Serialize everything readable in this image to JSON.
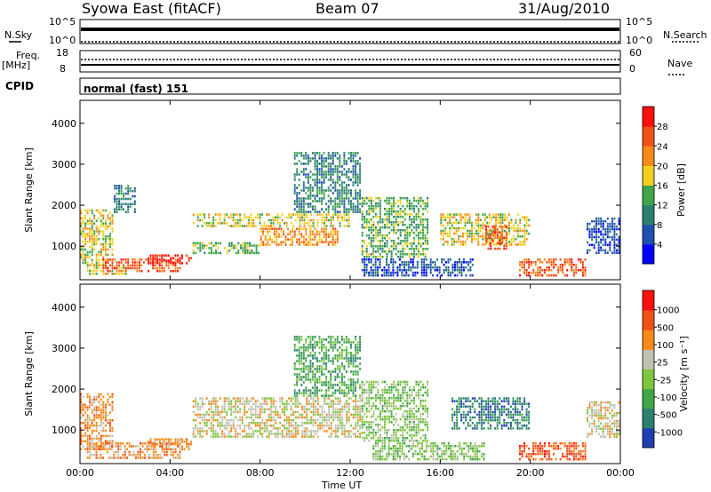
{
  "header": {
    "title": "Syowa East (fitACF)",
    "beam": "Beam 07",
    "date": "31/Aug/2010"
  },
  "top_panels": {
    "nsky_label": "N.Sky",
    "nsky_ticks": [
      "10^5",
      "10^0"
    ],
    "nsearch_label": "N.Search",
    "nsearch_ticks": [
      "10^5",
      "10^0"
    ],
    "freq_label_1": "Freq.",
    "freq_label_2": "[MHz]",
    "freq_ticks": [
      "18",
      "8"
    ],
    "nave_label": "Nave",
    "nave_ticks": [
      "60",
      "0"
    ],
    "cpid_label": "CPID",
    "cpid_text": "normal (fast) 151"
  },
  "chart_data": [
    {
      "type": "heatmap",
      "name": "power",
      "ylabel": "Slant Range [km]",
      "xlabel": "Time UT",
      "x_ticks": [
        "00:00",
        "04:00",
        "08:00",
        "12:00",
        "16:00",
        "20:00",
        "00:00"
      ],
      "y_ticks": [
        "1000",
        "2000",
        "3000",
        "4000"
      ],
      "xlim_hours": [
        0,
        24
      ],
      "ylim_km": [
        180,
        4560
      ],
      "colorbar": {
        "label": "Power [dB]",
        "ticks": [
          "4",
          "8",
          "12",
          "16",
          "20",
          "24",
          "28"
        ],
        "colors": [
          "#0000ff",
          "#1f4fb0",
          "#2d7f6f",
          "#3fa64a",
          "#f0d020",
          "#f58a18",
          "#f05016",
          "#ff1010"
        ]
      },
      "regions": [
        {
          "t0": 0.0,
          "t1": 1.5,
          "r0": 500,
          "r1": 1900,
          "level": 4
        },
        {
          "t0": 0.3,
          "t1": 2.2,
          "r0": 280,
          "r1": 500,
          "level": 4
        },
        {
          "t0": 1.5,
          "t1": 2.5,
          "r0": 1800,
          "r1": 2500,
          "level": 2
        },
        {
          "t0": 1.0,
          "t1": 4.5,
          "r0": 350,
          "r1": 700,
          "level": 6
        },
        {
          "t0": 3.0,
          "t1": 5.0,
          "r0": 550,
          "r1": 800,
          "level": 7
        },
        {
          "t0": 5.0,
          "t1": 8.0,
          "r0": 800,
          "r1": 1100,
          "level": 3
        },
        {
          "t0": 5.0,
          "t1": 12.0,
          "r0": 1450,
          "r1": 1800,
          "level": 4
        },
        {
          "t0": 8.0,
          "t1": 11.5,
          "r0": 1000,
          "r1": 1450,
          "level": 5
        },
        {
          "t0": 9.5,
          "t1": 12.5,
          "r0": 1800,
          "r1": 3300,
          "level": 2
        },
        {
          "t0": 12.5,
          "t1": 15.5,
          "r0": 700,
          "r1": 2200,
          "level": 3
        },
        {
          "t0": 12.5,
          "t1": 17.5,
          "r0": 250,
          "r1": 700,
          "level": 1
        },
        {
          "t0": 16.0,
          "t1": 20.0,
          "r0": 1000,
          "r1": 1800,
          "level": 4
        },
        {
          "t0": 18.0,
          "t1": 19.0,
          "r0": 900,
          "r1": 1500,
          "level": 6
        },
        {
          "t0": 19.5,
          "t1": 22.5,
          "r0": 250,
          "r1": 700,
          "level": 6
        },
        {
          "t0": 22.5,
          "t1": 24.0,
          "r0": 800,
          "r1": 1700,
          "level": 1
        }
      ]
    },
    {
      "type": "heatmap",
      "name": "velocity",
      "ylabel": "Slant Range [km]",
      "xlabel": "Time UT",
      "x_ticks": [
        "00:00",
        "04:00",
        "08:00",
        "12:00",
        "16:00",
        "20:00",
        "00:00"
      ],
      "y_ticks": [
        "1000",
        "2000",
        "3000",
        "4000"
      ],
      "xlim_hours": [
        0,
        24
      ],
      "ylim_km": [
        180,
        4560
      ],
      "colorbar": {
        "label": "Velocity [m s⁻¹]",
        "ticks": [
          "1000",
          "500",
          "100",
          "25",
          "-25",
          "-100",
          "-500",
          "-1000"
        ],
        "colors": [
          "#1f3fb0",
          "#2d7f6f",
          "#3fa64a",
          "#7ec63f",
          "#c0c0b0",
          "#f58a18",
          "#f05016",
          "#ff1010"
        ]
      },
      "regions": [
        {
          "t0": 0.0,
          "t1": 1.5,
          "r0": 500,
          "r1": 1900,
          "level": 5
        },
        {
          "t0": 0.3,
          "t1": 4.5,
          "r0": 280,
          "r1": 700,
          "level": 5
        },
        {
          "t0": 3.0,
          "t1": 5.0,
          "r0": 500,
          "r1": 800,
          "level": 5
        },
        {
          "t0": 5.0,
          "t1": 12.5,
          "r0": 800,
          "r1": 1800,
          "level": 4
        },
        {
          "t0": 9.5,
          "t1": 12.5,
          "r0": 1800,
          "r1": 3300,
          "level": 2
        },
        {
          "t0": 12.5,
          "t1": 15.5,
          "r0": 700,
          "r1": 2200,
          "level": 3
        },
        {
          "t0": 13.0,
          "t1": 18.0,
          "r0": 250,
          "r1": 700,
          "level": 3
        },
        {
          "t0": 16.5,
          "t1": 20.0,
          "r0": 1000,
          "r1": 1800,
          "level": 1
        },
        {
          "t0": 19.5,
          "t1": 22.5,
          "r0": 250,
          "r1": 700,
          "level": 6
        },
        {
          "t0": 22.5,
          "t1": 24.0,
          "r0": 800,
          "r1": 1700,
          "level": 4
        }
      ]
    }
  ]
}
